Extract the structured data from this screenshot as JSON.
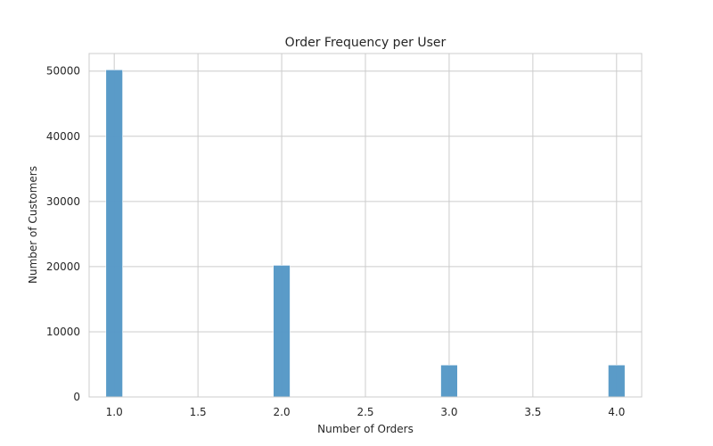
{
  "chart_data": {
    "type": "bar",
    "title": "Order Frequency per User",
    "xlabel": "Number of Orders",
    "ylabel": "Number of Customers",
    "x": [
      1.0,
      2.0,
      3.0,
      4.0
    ],
    "values": [
      50200,
      20200,
      4900,
      4900
    ],
    "xlim": [
      0.85,
      4.15
    ],
    "ylim": [
      0,
      52700
    ],
    "xticks": [
      1.0,
      1.5,
      2.0,
      2.5,
      3.0,
      3.5,
      4.0
    ],
    "xtick_labels": [
      "1.0",
      "1.5",
      "2.0",
      "2.5",
      "3.0",
      "3.5",
      "4.0"
    ],
    "yticks": [
      0,
      10000,
      20000,
      30000,
      40000,
      50000
    ],
    "ytick_labels": [
      "0",
      "10000",
      "20000",
      "30000",
      "40000",
      "50000"
    ],
    "bar_color": "#5799c7",
    "grid": true,
    "legend": false
  }
}
